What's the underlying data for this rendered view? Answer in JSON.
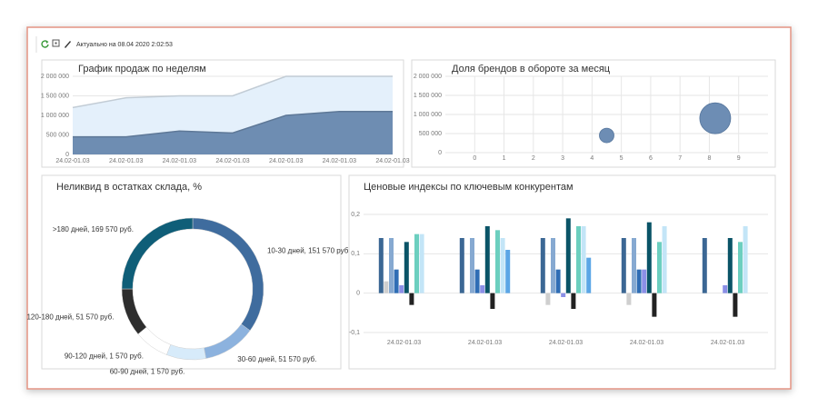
{
  "toolbar": {
    "status": "Актуально на 08.04 2020 2:02:53"
  },
  "chart_data": [
    {
      "type": "area",
      "title": "График продаж по неделям",
      "categories": [
        "24.02-01.03",
        "24.02-01.03",
        "24.02-01.03",
        "24.02-01.03",
        "24.02-01.03",
        "24.02-01.03",
        "24.02-01.03"
      ],
      "series": [
        {
          "color": "#e4f0fb",
          "values": [
            1200000,
            1450000,
            1500000,
            1500000,
            2000000,
            2000000,
            2000000
          ]
        },
        {
          "color": "#6e8db2",
          "values": [
            450000,
            450000,
            600000,
            550000,
            1000000,
            1100000,
            1100000
          ]
        }
      ],
      "ylim": [
        0,
        2000000
      ],
      "yticks": [
        0,
        {
          "value": 500000,
          "label": "500 000"
        },
        {
          "value": 1000000,
          "label": "1 000 000"
        },
        {
          "value": 1500000,
          "label": "1 500 000"
        },
        {
          "value": 2000000,
          "label": "2 000 000"
        }
      ],
      "grid": true
    },
    {
      "type": "scatter",
      "title": "Доля брендов в обороте за месяц",
      "x": [
        4.5,
        8.2
      ],
      "values": [
        450000,
        900000
      ],
      "sizes": [
        8,
        17
      ],
      "color": "#6d8db4",
      "xlim": [
        -1,
        10
      ],
      "xticks": [
        0,
        1,
        2,
        3,
        4,
        5,
        6,
        7,
        8,
        9
      ],
      "ylim": [
        0,
        2000000
      ],
      "yticks": [
        0,
        {
          "value": 500000,
          "label": "500 000"
        },
        {
          "value": 1000000,
          "label": "1 000 000"
        },
        {
          "value": 1500000,
          "label": "1 500 000"
        },
        {
          "value": 2000000,
          "label": "2 000 000"
        }
      ],
      "grid": true
    },
    {
      "type": "pie",
      "title": "Неликвид в остатках склада, %",
      "categories": [
        "10-30 дней, 151 570 руб.",
        "30-60 дней, 51 570 руб.",
        "60-90 дней, 1 570 руб.",
        "90-120 дней, 1 570 руб.",
        "120-180 дней, 51 570 руб.",
        ">180 дней, 169 570 руб."
      ],
      "values": [
        35,
        12,
        9,
        8,
        11,
        25
      ],
      "colors": [
        "#3f6c9e",
        "#8cb2de",
        "#d7ebfa",
        "#ffffff",
        "#2e2e2e",
        "#0f5e78"
      ]
    },
    {
      "type": "bar",
      "title": "Ценовые индексы по ключевым конкурентам",
      "categories": [
        "24.02-01.03",
        "24.02-01.03",
        "24.02-01.03",
        "24.02-01.03",
        "24.02-01.03"
      ],
      "series": [
        {
          "color": "#3b6794",
          "values": [
            0.14,
            0.14,
            0.14,
            0.14,
            0.14
          ]
        },
        {
          "color": "#cfcfcf",
          "values": [
            0.03,
            0,
            -0.03,
            -0.03,
            0
          ]
        },
        {
          "color": "#86a9d1",
          "values": [
            0.14,
            0.14,
            0.14,
            0.14,
            0
          ]
        },
        {
          "color": "#2f6db5",
          "values": [
            0.06,
            0.06,
            0.06,
            0.06,
            0
          ]
        },
        {
          "color": "#8b8fe6",
          "values": [
            0.02,
            0.02,
            -0.01,
            0.06,
            0.02
          ]
        },
        {
          "color": "#0a5467",
          "values": [
            0.13,
            0.17,
            0.19,
            0.18,
            0.14
          ]
        },
        {
          "color": "#222222",
          "values": [
            -0.03,
            -0.04,
            -0.04,
            -0.06,
            -0.06
          ]
        },
        {
          "color": "#6ccfbf",
          "values": [
            0.15,
            0.16,
            0.17,
            0.13,
            0.13
          ]
        },
        {
          "color": "#c3e5f7",
          "values": [
            0.15,
            0.14,
            0.17,
            0.17,
            0.17
          ]
        },
        {
          "color": "#5ba6e6",
          "values": [
            0,
            0.11,
            0.09,
            0,
            0
          ]
        }
      ],
      "ylim": [
        -0.1,
        0.2
      ],
      "yticks": [
        {
          "value": -0.1,
          "label": "-0,1"
        },
        0,
        {
          "value": 0.1,
          "label": "0,1"
        },
        {
          "value": 0.2,
          "label": "0,2"
        }
      ],
      "grid": true
    }
  ]
}
